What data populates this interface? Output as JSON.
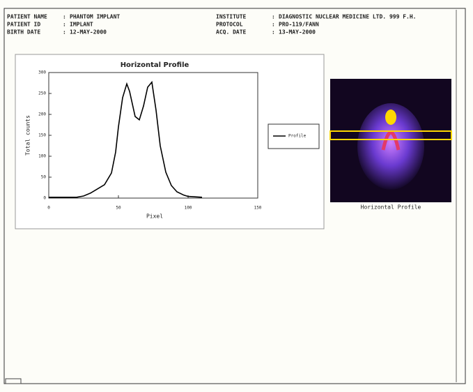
{
  "header": {
    "fields": [
      {
        "label": "PATIENT NAME",
        "value": "PHANTOM IMPLANT"
      },
      {
        "label": "PATIENT ID",
        "value": "IMPLANT"
      },
      {
        "label": "BIRTH DATE",
        "value": "12-MAY-2000"
      },
      {
        "label": "INSTITUTE",
        "value": "DIAGNOSTIC NUCLEAR MEDICINE LTD. 999 F.H."
      },
      {
        "label": "PROTOCOL",
        "value": "PRO-119/FANN"
      },
      {
        "label": "ACQ. DATE",
        "value": "13-MAY-2000"
      }
    ],
    "separator": ":"
  },
  "image_caption": "Horizontal Profile",
  "chart_data": {
    "type": "line",
    "title": "Horizontal Profile",
    "x_label": "Pixel",
    "y_label": "Total counts",
    "x": [
      0,
      10,
      20,
      25,
      30,
      35,
      40,
      45,
      48,
      50,
      53,
      56,
      58,
      62,
      65,
      68,
      71,
      74,
      77,
      80,
      84,
      88,
      92,
      97,
      100,
      110
    ],
    "series": [
      {
        "name": "Profile",
        "color": "#000000",
        "values": [
          2,
          2,
          2,
          5,
          12,
          22,
          32,
          60,
          110,
          170,
          240,
          273,
          255,
          195,
          187,
          220,
          265,
          277,
          210,
          125,
          62,
          30,
          15,
          7,
          4,
          2
        ]
      }
    ],
    "xlim": [
      0,
      150
    ],
    "xticks": [
      0,
      50,
      100,
      150
    ],
    "ylim": [
      0,
      300
    ],
    "yticks": [
      0,
      50,
      100,
      150,
      200,
      250,
      300
    ],
    "grid": false
  }
}
